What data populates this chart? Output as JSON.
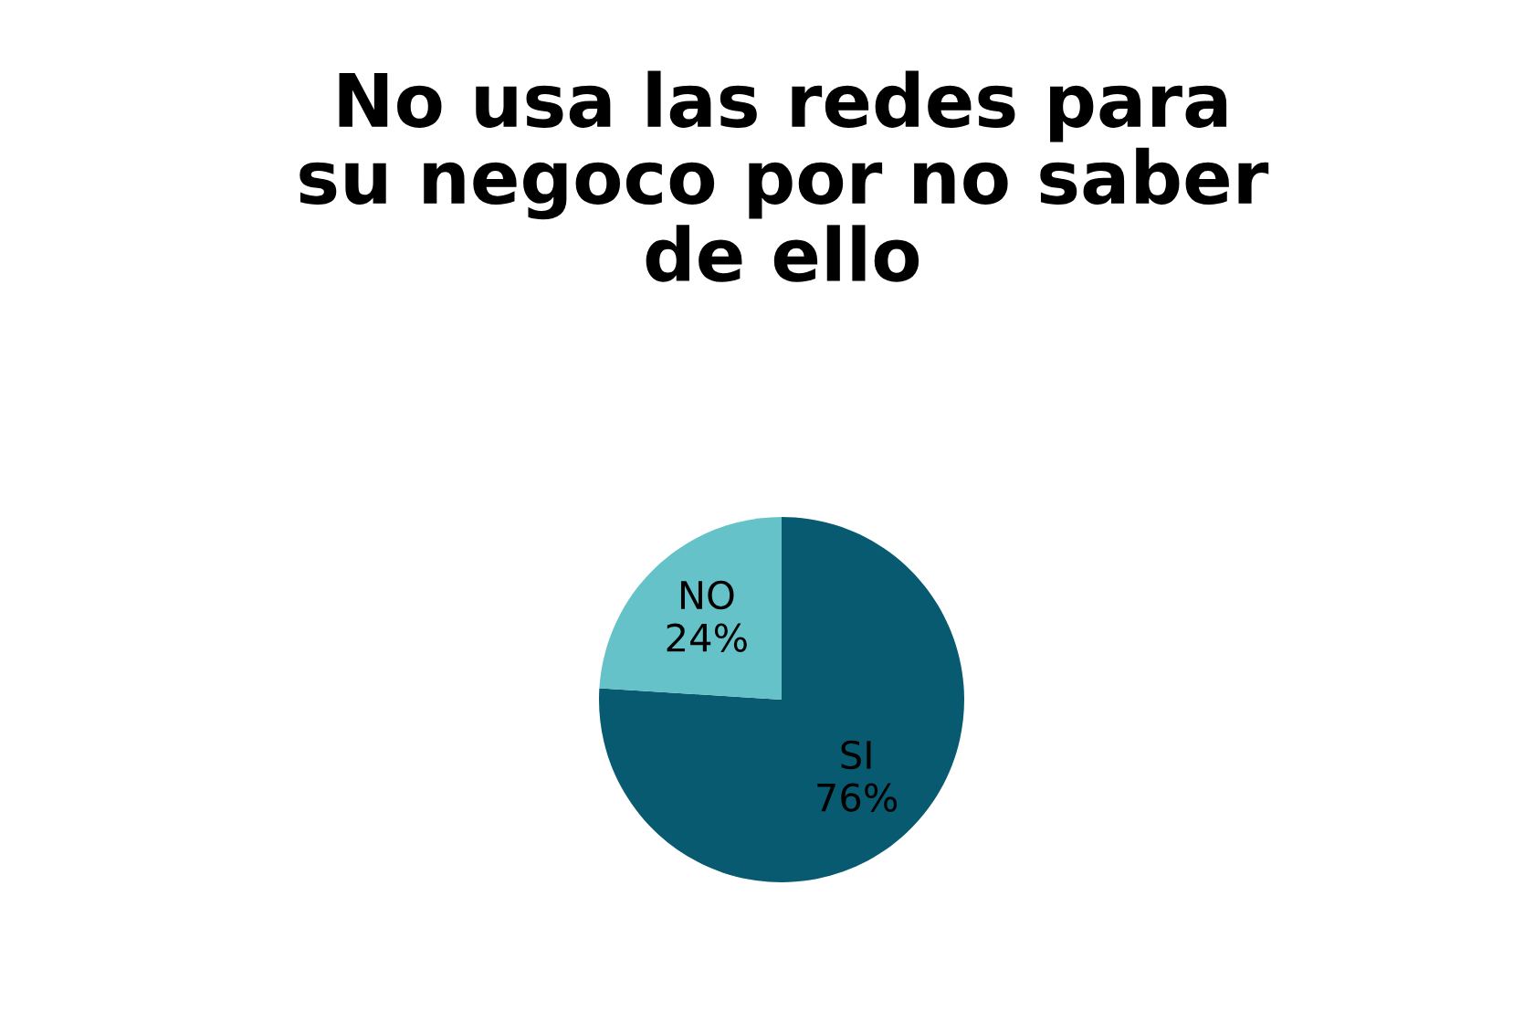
{
  "chart_data": {
    "type": "pie",
    "title": "No usa las redes para\nsu negoco por no saber\nde ello",
    "categories": [
      "SI",
      "NO"
    ],
    "values": [
      76,
      24
    ],
    "colors": [
      "#085a70",
      "#65c2c8"
    ],
    "value_labels": [
      "76%",
      "24%"
    ],
    "legend": false
  }
}
